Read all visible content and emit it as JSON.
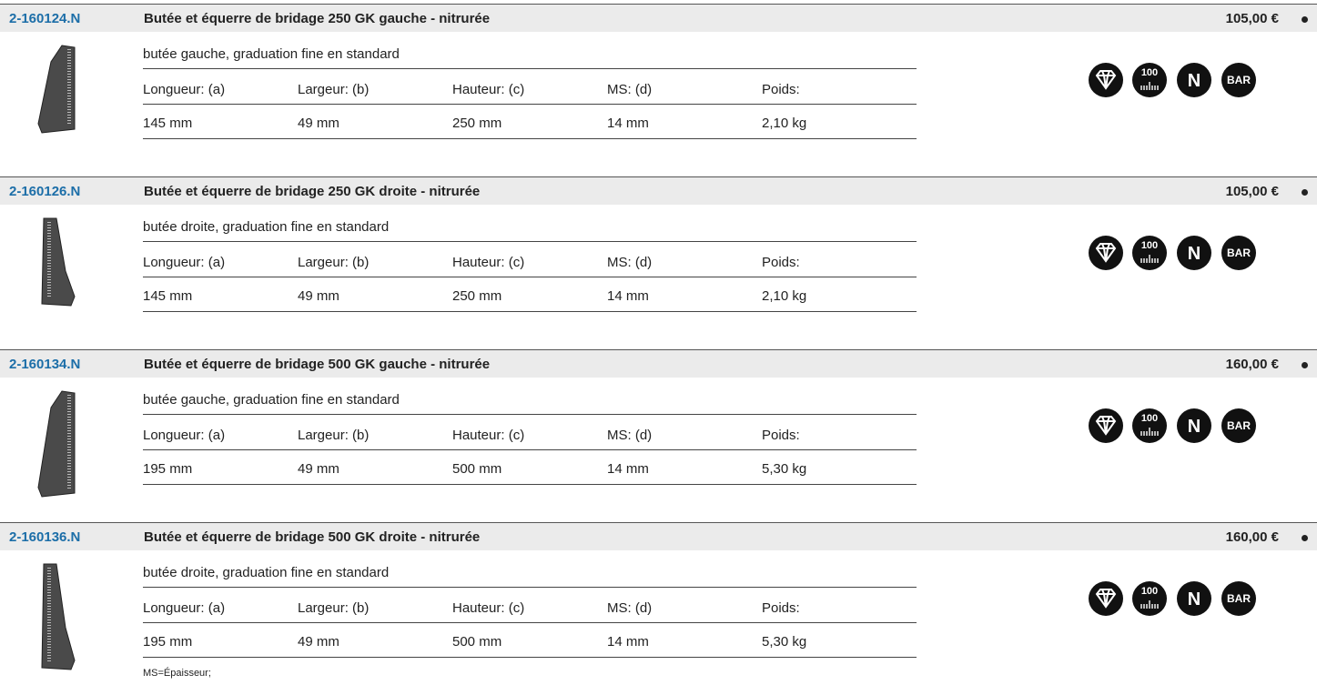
{
  "products": [
    {
      "code": "2-160124.N",
      "title": "Butée et équerre de bridage 250 GK gauche - nitrurée",
      "price": "105,00 €",
      "description": "butée gauche, graduation fine en standard",
      "spec_headers": [
        "Longueur: (a)",
        "Largeur: (b)",
        "Hauteur: (c)",
        "MS: (d)",
        "Poids:"
      ],
      "spec_values": [
        "145 mm",
        "49 mm",
        "250 mm",
        "14 mm",
        "2,10 kg"
      ],
      "icons": [
        "100",
        "N",
        "BAR"
      ]
    },
    {
      "code": "2-160126.N",
      "title": "Butée et équerre de bridage 250 GK droite - nitrurée",
      "price": "105,00 €",
      "description": "butée droite, graduation fine en standard",
      "spec_headers": [
        "Longueur: (a)",
        "Largeur: (b)",
        "Hauteur: (c)",
        "MS: (d)",
        "Poids:"
      ],
      "spec_values": [
        "145 mm",
        "49 mm",
        "250 mm",
        "14 mm",
        "2,10 kg"
      ],
      "icons": [
        "100",
        "N",
        "BAR"
      ]
    },
    {
      "code": "2-160134.N",
      "title": "Butée et équerre de bridage 500 GK gauche - nitrurée",
      "price": "160,00 €",
      "description": "butée gauche, graduation fine en standard",
      "spec_headers": [
        "Longueur: (a)",
        "Largeur: (b)",
        "Hauteur: (c)",
        "MS: (d)",
        "Poids:"
      ],
      "spec_values": [
        "195 mm",
        "49 mm",
        "500 mm",
        "14 mm",
        "5,30 kg"
      ],
      "icons": [
        "100",
        "N",
        "BAR"
      ]
    },
    {
      "code": "2-160136.N",
      "title": "Butée et équerre de bridage 500 GK droite - nitrurée",
      "price": "160,00 €",
      "description": "butée droite, graduation fine en standard",
      "spec_headers": [
        "Longueur: (a)",
        "Largeur: (b)",
        "Hauteur: (c)",
        "MS: (d)",
        "Poids:"
      ],
      "spec_values": [
        "195 mm",
        "49 mm",
        "500 mm",
        "14 mm",
        "5,30 kg"
      ],
      "icons": [
        "100",
        "N",
        "BAR"
      ]
    }
  ],
  "footnote": "MS=Épaisseur;"
}
